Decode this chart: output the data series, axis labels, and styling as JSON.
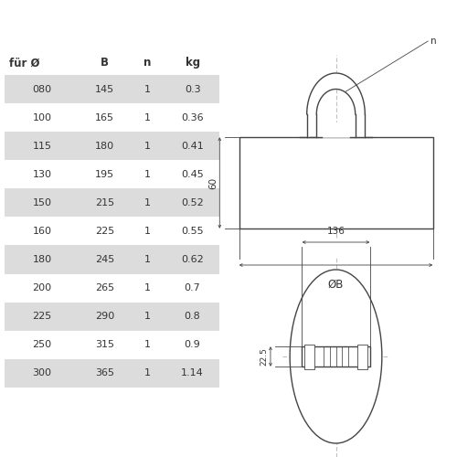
{
  "table_headers": [
    "für Ø",
    "B",
    "n",
    "kg"
  ],
  "table_rows": [
    [
      "080",
      "145",
      "1",
      "0.3"
    ],
    [
      "100",
      "165",
      "1",
      "0.36"
    ],
    [
      "115",
      "180",
      "1",
      "0.41"
    ],
    [
      "130",
      "195",
      "1",
      "0.45"
    ],
    [
      "150",
      "215",
      "1",
      "0.52"
    ],
    [
      "160",
      "225",
      "1",
      "0.55"
    ],
    [
      "180",
      "245",
      "1",
      "0.62"
    ],
    [
      "200",
      "265",
      "1",
      "0.7"
    ],
    [
      "225",
      "290",
      "1",
      "0.8"
    ],
    [
      "250",
      "315",
      "1",
      "0.9"
    ],
    [
      "300",
      "365",
      "1",
      "1.14"
    ]
  ],
  "shaded_rows": [
    0,
    2,
    4,
    6,
    8,
    10
  ],
  "bg_color": "#ffffff",
  "row_shade": "#dcdcdc",
  "line_color": "#444444",
  "text_color": "#333333",
  "dim_60": "60",
  "dim_B": "ØB",
  "dim_136": "136",
  "dim_22_5": "22.5",
  "label_n": "n"
}
